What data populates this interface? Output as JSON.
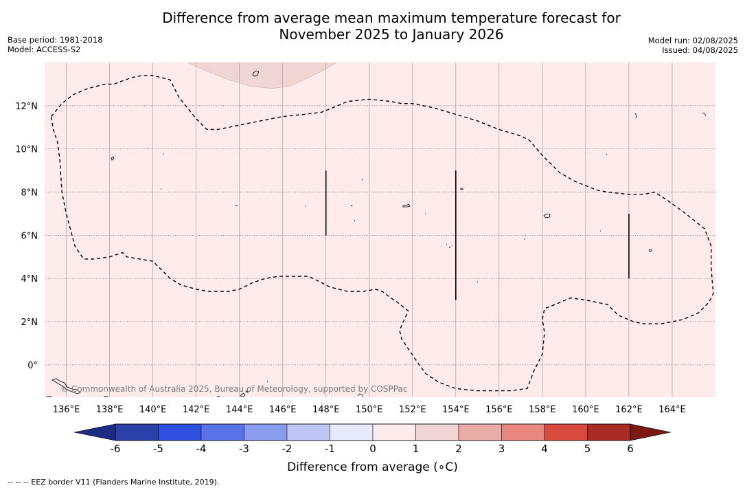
{
  "title": {
    "line1": "Difference from average mean maximum temperature forecast for",
    "line2": "November 2025 to January 2026"
  },
  "meta_left": {
    "base_period": "Base period: 1981-2018",
    "model": "Model: ACCESS-S2"
  },
  "meta_right": {
    "model_run": "Model run: 02/08/2025",
    "issued": "Issued: 04/08/2025"
  },
  "copyright": "© Commonwealth of Australia 2025, Bureau of Meteorology, supported by COSPPac",
  "footnote": "--  --  -- EEZ border V11 (Flanders Marine Institute, 2019).",
  "map": {
    "lon_range": [
      135,
      166
    ],
    "lat_range": [
      -1.5,
      14
    ],
    "background_color": "#fcebea",
    "lon_ticks": [
      {
        "value": 136,
        "label": "136°E"
      },
      {
        "value": 138,
        "label": "138°E"
      },
      {
        "value": 140,
        "label": "140°E"
      },
      {
        "value": 142,
        "label": "142°E"
      },
      {
        "value": 144,
        "label": "144°E"
      },
      {
        "value": 146,
        "label": "146°E"
      },
      {
        "value": 148,
        "label": "148°E"
      },
      {
        "value": 150,
        "label": "150°E"
      },
      {
        "value": 152,
        "label": "152°E"
      },
      {
        "value": 154,
        "label": "154°E"
      },
      {
        "value": 156,
        "label": "156°E"
      },
      {
        "value": 158,
        "label": "158°E"
      },
      {
        "value": 160,
        "label": "160°E"
      },
      {
        "value": 162,
        "label": "162°E"
      },
      {
        "value": 164,
        "label": "164°E"
      }
    ],
    "lat_ticks": [
      {
        "value": 0,
        "label": "0°"
      },
      {
        "value": 2,
        "label": "2°N"
      },
      {
        "value": 4,
        "label": "4°N"
      },
      {
        "value": 6,
        "label": "6°N"
      },
      {
        "value": 8,
        "label": "8°N"
      },
      {
        "value": 10,
        "label": "10°N"
      },
      {
        "value": 12,
        "label": "12°N"
      }
    ],
    "eez_border": [
      [
        135.3,
        11.5
      ],
      [
        135.8,
        12.1
      ],
      [
        136.3,
        12.5
      ],
      [
        137,
        12.8
      ],
      [
        137.8,
        13
      ],
      [
        138.2,
        13
      ],
      [
        139,
        13.3
      ],
      [
        139.5,
        13.4
      ],
      [
        140,
        13.4
      ],
      [
        140.8,
        13.2
      ],
      [
        141.2,
        12.4
      ],
      [
        142,
        11.4
      ],
      [
        142.5,
        10.9
      ],
      [
        143,
        10.9
      ],
      [
        144,
        11.1
      ],
      [
        145,
        11.3
      ],
      [
        146,
        11.5
      ],
      [
        147,
        11.6
      ],
      [
        147.8,
        11.7
      ],
      [
        148.3,
        11.9
      ],
      [
        149,
        12.2
      ],
      [
        150,
        12.3
      ],
      [
        151,
        12.2
      ],
      [
        151.5,
        12.1
      ],
      [
        152,
        12.1
      ],
      [
        153,
        11.9
      ],
      [
        154,
        11.6
      ],
      [
        155,
        11.3
      ],
      [
        156,
        10.9
      ],
      [
        157,
        10.6
      ],
      [
        157.4,
        10.4
      ],
      [
        158,
        9.7
      ],
      [
        158.8,
        8.9
      ],
      [
        159.5,
        8.5
      ],
      [
        160.5,
        8.1
      ],
      [
        161,
        8
      ],
      [
        162,
        7.9
      ],
      [
        162.7,
        7.9
      ],
      [
        163.2,
        8
      ],
      [
        163.8,
        7.6
      ],
      [
        164.5,
        7.1
      ],
      [
        165,
        6.7
      ],
      [
        165.5,
        6.3
      ],
      [
        165.8,
        5.5
      ],
      [
        165.8,
        4.5
      ],
      [
        165.9,
        3.3
      ],
      [
        165.7,
        2.9
      ],
      [
        165.2,
        2.4
      ],
      [
        164.5,
        2.1
      ],
      [
        163.5,
        1.9
      ],
      [
        162.7,
        1.9
      ],
      [
        162.2,
        2
      ],
      [
        161.5,
        2.3
      ],
      [
        161,
        2.8
      ],
      [
        160.5,
        2.9
      ],
      [
        160,
        3
      ],
      [
        159.3,
        3.1
      ],
      [
        158.6,
        2.8
      ],
      [
        158.1,
        2.6
      ],
      [
        158,
        2.1
      ],
      [
        158.1,
        1.5
      ],
      [
        158,
        0.5
      ],
      [
        157.6,
        -0.3
      ],
      [
        157.3,
        -1.1
      ],
      [
        156.5,
        -1.2
      ],
      [
        155,
        -1.2
      ],
      [
        154,
        -1.1
      ],
      [
        153.2,
        -0.8
      ],
      [
        152.6,
        -0.4
      ],
      [
        152.1,
        0.3
      ],
      [
        151.5,
        1.2
      ],
      [
        151.4,
        1.6
      ],
      [
        151.8,
        2.5
      ],
      [
        151.3,
        2.9
      ],
      [
        151,
        3.1
      ],
      [
        150.6,
        3.4
      ],
      [
        150.3,
        3.5
      ],
      [
        149.7,
        3.4
      ],
      [
        149,
        3.4
      ],
      [
        148.2,
        3.6
      ],
      [
        147.6,
        3.9
      ],
      [
        147.2,
        4.1
      ],
      [
        146.5,
        4.1
      ],
      [
        145.8,
        4.1
      ],
      [
        145.2,
        4
      ],
      [
        144.6,
        3.8
      ],
      [
        144,
        3.5
      ],
      [
        143.5,
        3.4
      ],
      [
        142.6,
        3.4
      ],
      [
        142,
        3.5
      ],
      [
        141.3,
        3.7
      ],
      [
        140.8,
        4
      ],
      [
        140.4,
        4.4
      ],
      [
        140,
        4.8
      ],
      [
        139.4,
        4.9
      ],
      [
        138.8,
        5
      ],
      [
        138.6,
        5.2
      ],
      [
        138,
        5
      ],
      [
        137.3,
        4.9
      ],
      [
        136.8,
        4.9
      ],
      [
        136.4,
        5.5
      ],
      [
        136,
        7
      ],
      [
        135.8,
        8
      ],
      [
        135.7,
        9.5
      ],
      [
        135.6,
        10.3
      ],
      [
        135.4,
        10.9
      ],
      [
        135.3,
        11.5
      ]
    ],
    "vertical_segments": [
      {
        "lon": 148,
        "lat_from": 6,
        "lat_to": 9
      },
      {
        "lon": 154,
        "lat_from": 3,
        "lat_to": 9
      },
      {
        "lon": 162,
        "lat_from": 4,
        "lat_to": 7
      }
    ],
    "warmer_zone_color": "#efd6d4",
    "warmer_zone": [
      [
        141.6,
        14
      ],
      [
        142.5,
        13.6
      ],
      [
        143.5,
        13.2
      ],
      [
        144.5,
        12.9
      ],
      [
        145.5,
        12.8
      ],
      [
        146.3,
        12.9
      ],
      [
        147,
        13.2
      ],
      [
        147.8,
        13.6
      ],
      [
        148.5,
        14
      ]
    ]
  },
  "colorbar": {
    "title": "Difference from average (∘C)",
    "bins": [
      {
        "from": -6,
        "to": -5,
        "color": "#2b3fa8"
      },
      {
        "from": -5,
        "to": -4,
        "color": "#2f4fe0"
      },
      {
        "from": -4,
        "to": -3,
        "color": "#5a72e8"
      },
      {
        "from": -3,
        "to": -2,
        "color": "#8a9ced"
      },
      {
        "from": -2,
        "to": -1,
        "color": "#bdc6f5"
      },
      {
        "from": -1,
        "to": 0,
        "color": "#e7eafb"
      },
      {
        "from": 0,
        "to": 1,
        "color": "#fcebea"
      },
      {
        "from": 1,
        "to": 2,
        "color": "#efd6d4"
      },
      {
        "from": 2,
        "to": 3,
        "color": "#eaaca6"
      },
      {
        "from": 3,
        "to": 4,
        "color": "#e7877f"
      },
      {
        "from": 4,
        "to": 5,
        "color": "#d94a3e"
      },
      {
        "from": 5,
        "to": 6,
        "color": "#a82b25"
      }
    ],
    "low_extend_color": "#1d2c82",
    "high_extend_color": "#7a1a14",
    "tick_labels": [
      "-6",
      "-5",
      "-4",
      "-3",
      "-2",
      "-1",
      "0",
      "1",
      "2",
      "3",
      "4",
      "5",
      "6"
    ]
  }
}
